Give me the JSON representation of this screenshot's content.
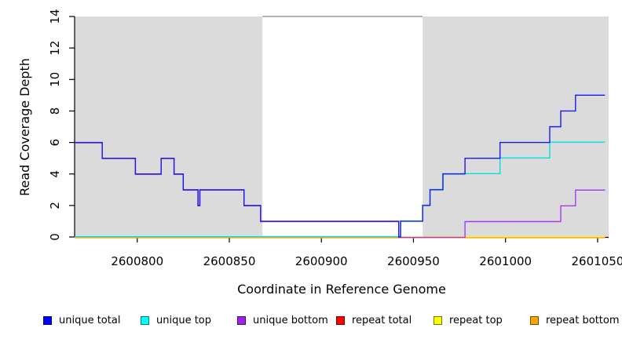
{
  "chart_data": {
    "type": "line",
    "subtype": "step",
    "title": "",
    "xlabel": "Coordinate in Reference Genome",
    "ylabel": "Read Coverage Depth",
    "xlim": [
      2600766,
      2601056
    ],
    "ylim": [
      0,
      14
    ],
    "x_ticks": [
      2600800,
      2600850,
      2600900,
      2600950,
      2601000,
      2601050
    ],
    "y_ticks": [
      0,
      2,
      4,
      6,
      8,
      10,
      12,
      14
    ],
    "grid": false,
    "background_color": "#ffffff",
    "shaded_regions": [
      {
        "name": "left-shaded-region",
        "x0": 2600766,
        "x1": 2600868,
        "color": "#DBDBDB"
      },
      {
        "name": "right-shaded-region",
        "x0": 2600955,
        "x1": 2601056,
        "color": "#DBDBDB"
      }
    ],
    "gap_boundary_line": {
      "x0": 2600868,
      "x1": 2600955,
      "y": 14,
      "color": "#999999"
    },
    "series": [
      {
        "name": "repeat total",
        "color": "#E00000",
        "points": [
          [
            2600766,
            0
          ],
          [
            2601054,
            0
          ]
        ]
      },
      {
        "name": "repeat top",
        "color": "#FFFF00",
        "points": [
          [
            2600766,
            0
          ],
          [
            2601054,
            0
          ]
        ]
      },
      {
        "name": "repeat bottom",
        "color": "#FFA000",
        "points": [
          [
            2600766,
            0
          ],
          [
            2601054,
            0
          ]
        ]
      },
      {
        "name": "unique bottom",
        "color": "#A93BEC",
        "points": [
          [
            2600766,
            6
          ],
          [
            2600781,
            5
          ],
          [
            2600799,
            4
          ],
          [
            2600813,
            5
          ],
          [
            2600820,
            4
          ],
          [
            2600825,
            3
          ],
          [
            2600833,
            2
          ],
          [
            2600834,
            3
          ],
          [
            2600858,
            2
          ],
          [
            2600867,
            1
          ],
          [
            2600942,
            0
          ],
          [
            2600978,
            1
          ],
          [
            2601030,
            2
          ],
          [
            2601038,
            3
          ],
          [
            2601054,
            3
          ]
        ]
      },
      {
        "name": "unique top",
        "color": "#00E0E0",
        "points": [
          [
            2600766,
            0
          ],
          [
            2600943,
            1
          ],
          [
            2600955,
            2
          ],
          [
            2600959,
            3
          ],
          [
            2600966,
            4
          ],
          [
            2600997,
            5
          ],
          [
            2601024,
            6
          ],
          [
            2601054,
            6
          ]
        ]
      },
      {
        "name": "unique total",
        "color": "#1A1AEF",
        "points": [
          [
            2600766,
            6
          ],
          [
            2600781,
            5
          ],
          [
            2600799,
            4
          ],
          [
            2600813,
            5
          ],
          [
            2600820,
            4
          ],
          [
            2600825,
            3
          ],
          [
            2600833,
            2
          ],
          [
            2600834,
            3
          ],
          [
            2600858,
            2
          ],
          [
            2600867,
            1
          ],
          [
            2600942,
            0
          ],
          [
            2600943,
            1
          ],
          [
            2600955,
            2
          ],
          [
            2600959,
            3
          ],
          [
            2600966,
            4
          ],
          [
            2600978,
            5
          ],
          [
            2600997,
            6
          ],
          [
            2601024,
            7
          ],
          [
            2601030,
            8
          ],
          [
            2601038,
            9
          ],
          [
            2601054,
            9
          ]
        ]
      }
    ],
    "legend": {
      "position": "bottom",
      "items": [
        {
          "label": "unique total",
          "color": "#0000FF"
        },
        {
          "label": "unique top",
          "color": "#00FFFF"
        },
        {
          "label": "unique bottom",
          "color": "#A020F0"
        },
        {
          "label": "repeat total",
          "color": "#FF0000"
        },
        {
          "label": "repeat top",
          "color": "#FFFF00"
        },
        {
          "label": "repeat bottom",
          "color": "#FFA500"
        }
      ]
    }
  }
}
